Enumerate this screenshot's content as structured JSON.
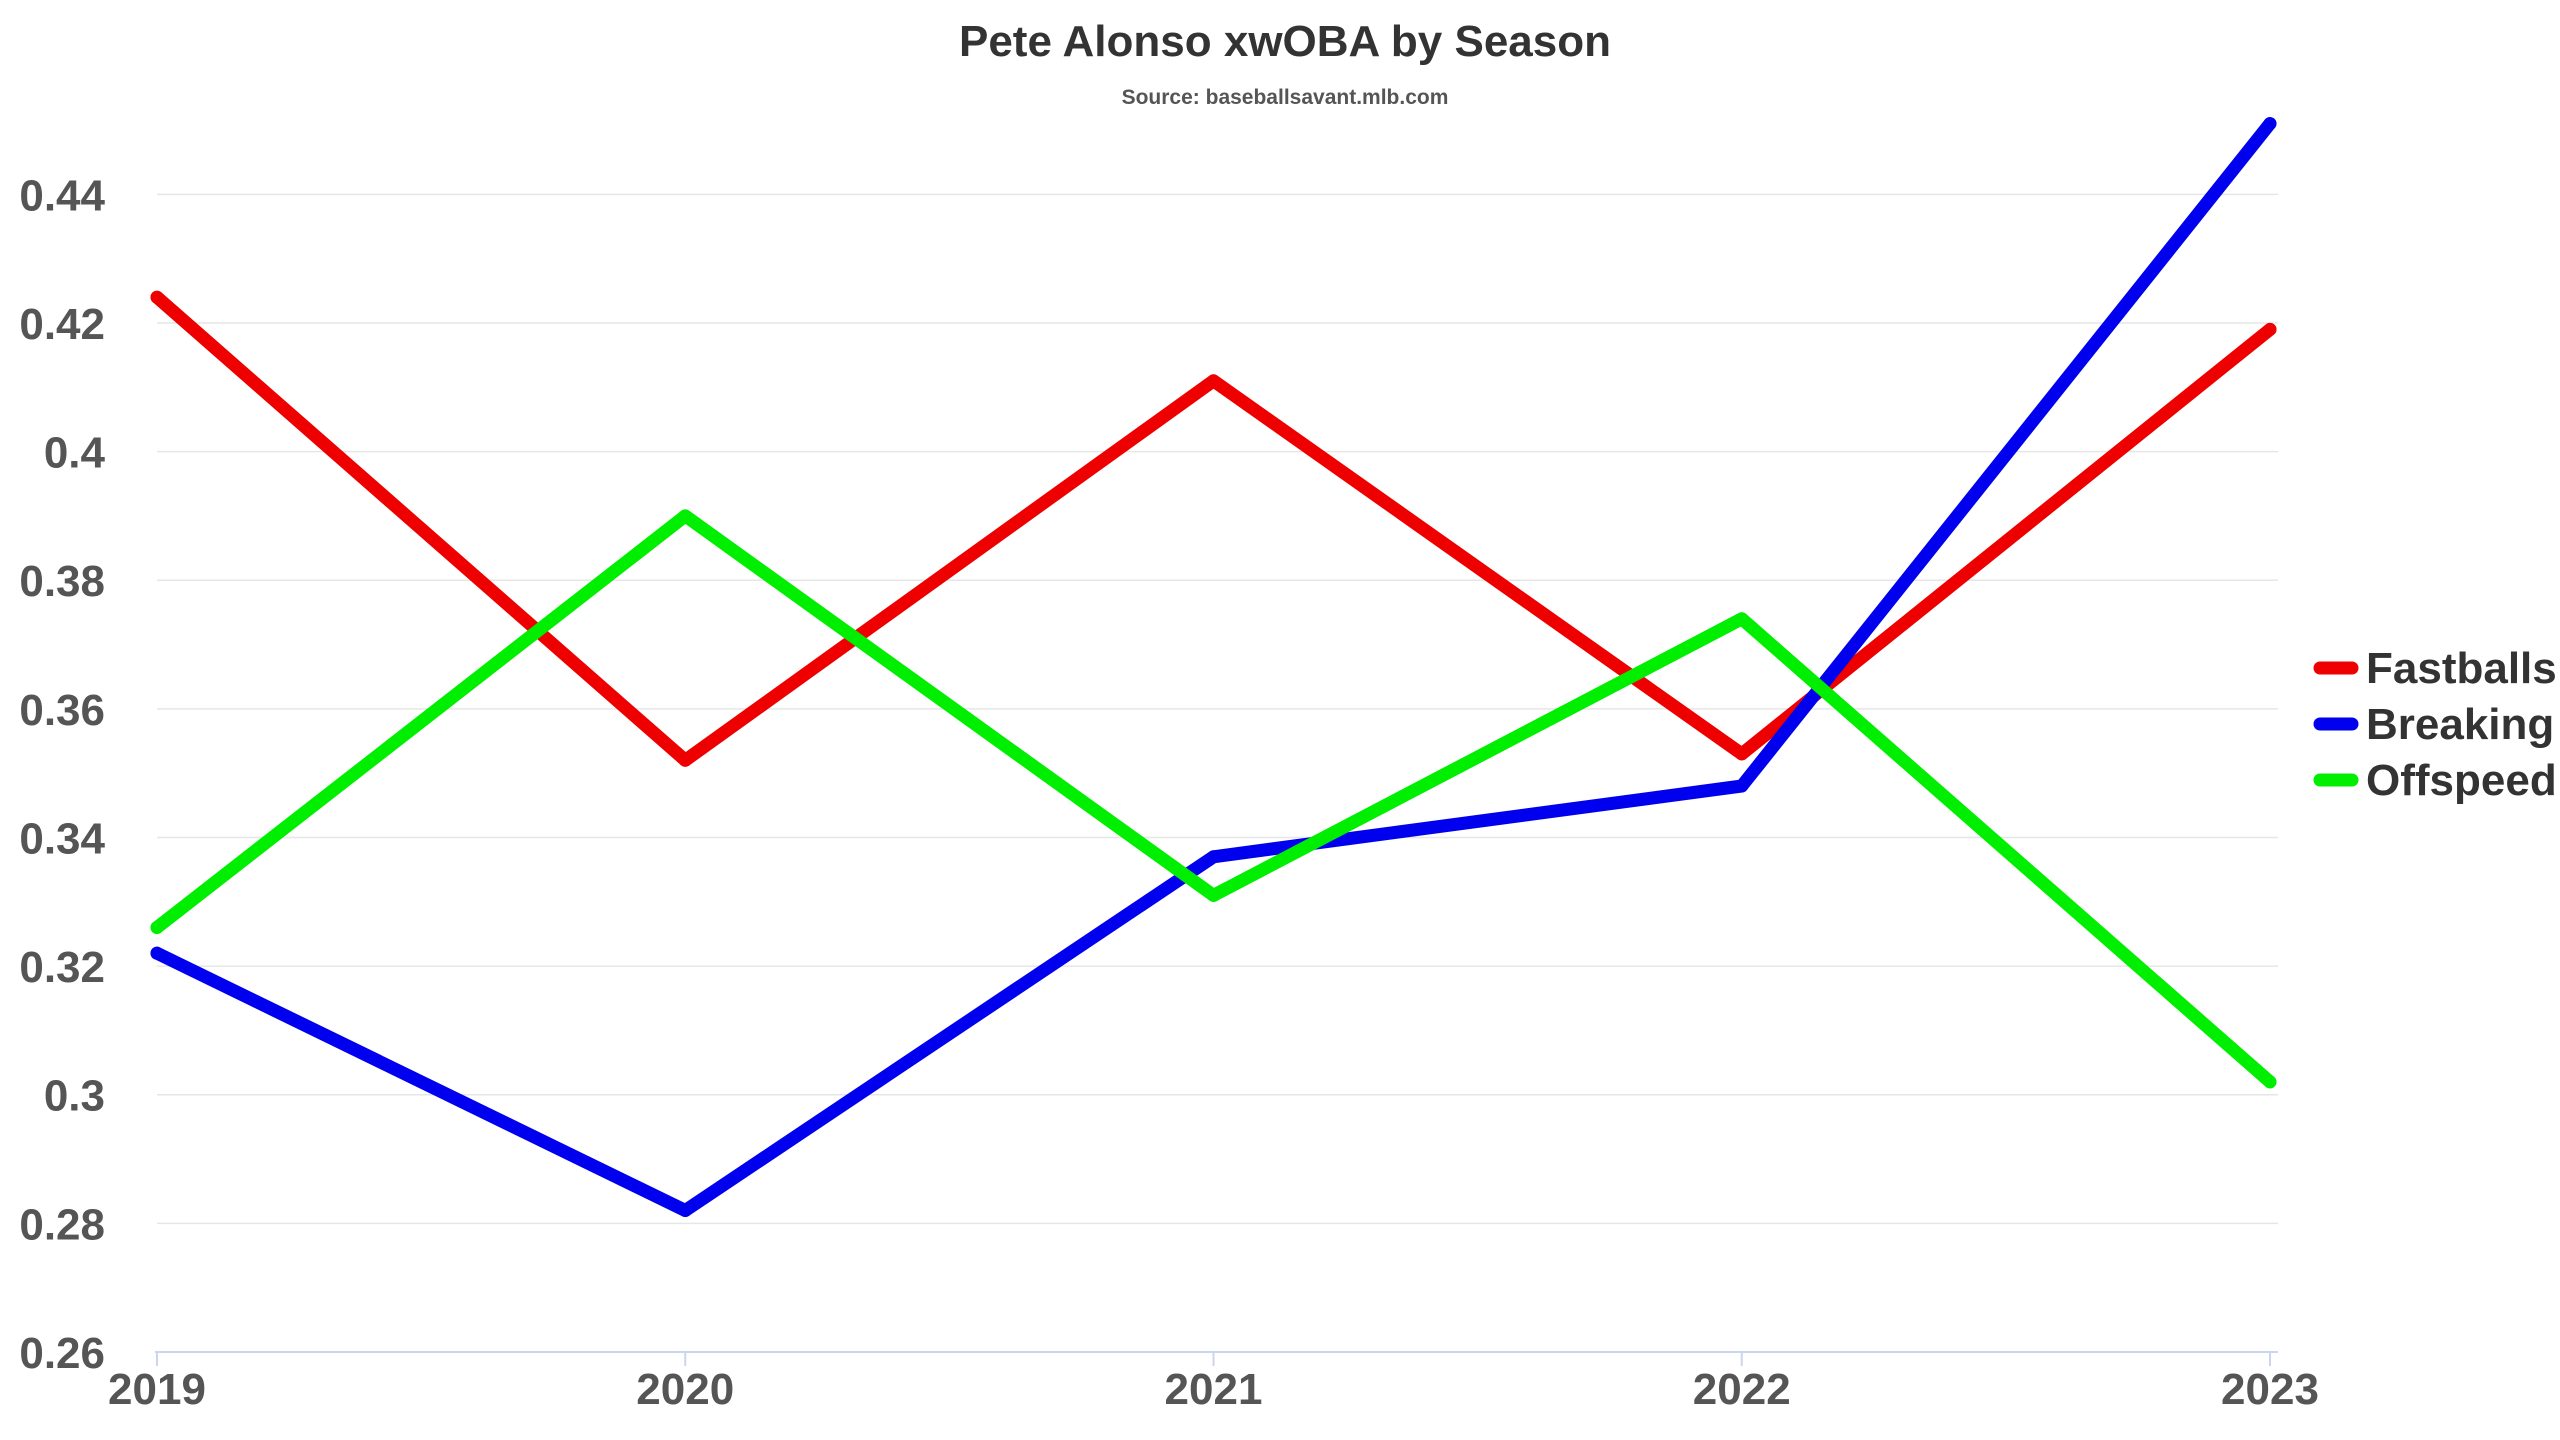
{
  "chart_data": {
    "type": "line",
    "title": "Pete Alonso xwOBA by Season",
    "subtitle": "Source: baseballsavant.mlb.com",
    "x": [
      "2019",
      "2020",
      "2021",
      "2022",
      "2023"
    ],
    "y_ticks": [
      "0.26",
      "0.28",
      "0.3",
      "0.32",
      "0.34",
      "0.36",
      "0.38",
      "0.4",
      "0.42",
      "0.44"
    ],
    "ylim": [
      0.26,
      0.45
    ],
    "grid": true,
    "legend_position": "right",
    "series": [
      {
        "name": "Fastballs",
        "color": "#ee0000",
        "values": [
          0.424,
          0.352,
          0.411,
          0.353,
          0.419
        ]
      },
      {
        "name": "Breaking",
        "color": "#0000ee",
        "values": [
          0.322,
          0.282,
          0.337,
          0.348,
          0.451
        ]
      },
      {
        "name": "Offspeed",
        "color": "#00ee00",
        "values": [
          0.326,
          0.39,
          0.331,
          0.374,
          0.302
        ]
      }
    ]
  }
}
